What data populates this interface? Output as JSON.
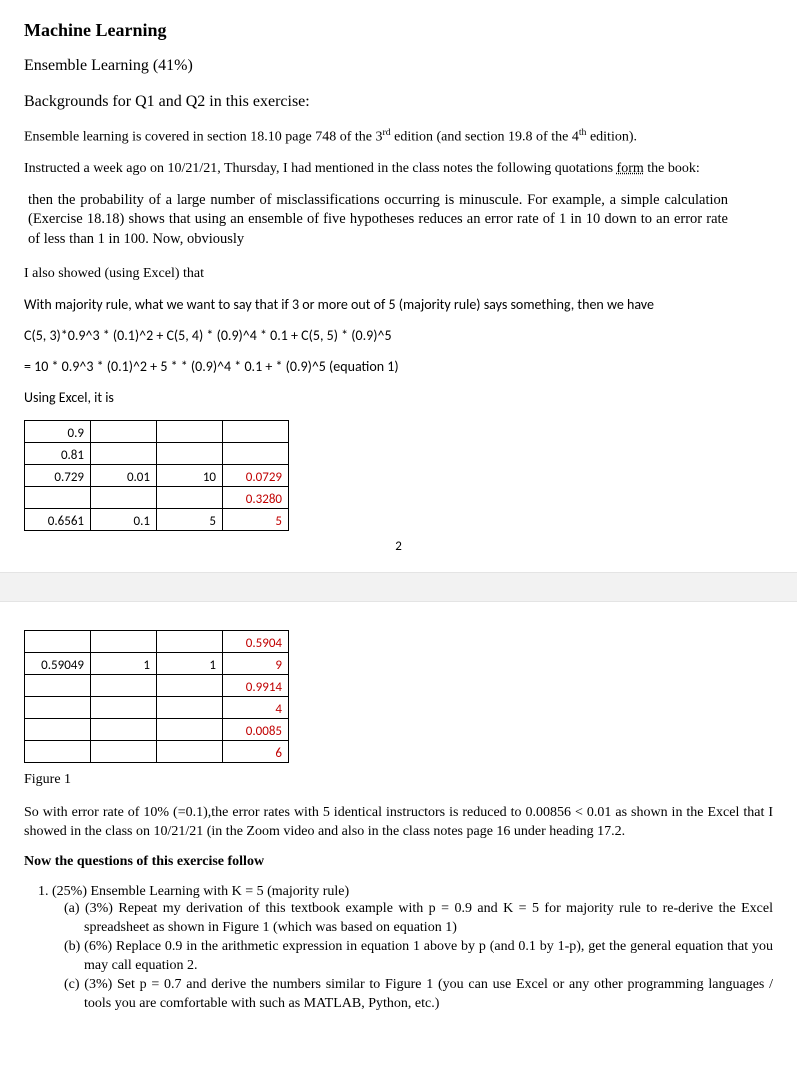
{
  "title": "Machine Learning",
  "subhead1": "Ensemble Learning (41%)",
  "subhead2": "Backgrounds for Q1 and Q2 in this exercise:",
  "intro1_a": "Ensemble learning is covered in section 18.10 page 748 of the 3",
  "intro1_sup1": "rd",
  "intro1_b": " edition (and section 19.8 of the 4",
  "intro1_sup2": "th",
  "intro1_c": " edition).",
  "intro2_a": "Instructed a week ago on 10/21/21, Thursday, I had mentioned in the class notes the following quotations ",
  "intro2_u": "form",
  "intro2_b": " the book:",
  "quote": "then the probability of a large number of misclassifications occurring is minuscule. For example, a simple calculation (Exercise 18.18) shows that using an ensemble of five hypotheses reduces an error rate of 1 in 10 down to an error rate of less than 1 in 100. Now, obviously",
  "also": "I also showed (using Excel) that",
  "maj": "With majority rule, what we want to say that if 3 or more out of 5 (majority rule) says something, then we have",
  "eq_line1": "C(5, 3)*0.9^3 * (0.1)^2 + C(5, 4) * (0.9)^4 * 0.1 + C(5, 5) * (0.9)^5",
  "eq_line2": "= 10 * 0.9^3 * (0.1)^2 + 5 * * (0.9)^4 * 0.1 + * (0.9)^5   (equation 1)",
  "using_excel": "Using Excel, it is",
  "table1": {
    "rows": [
      [
        {
          "v": "0.9"
        },
        {
          "v": ""
        },
        {
          "v": ""
        },
        {
          "v": ""
        }
      ],
      [
        {
          "v": "0.81"
        },
        {
          "v": ""
        },
        {
          "v": ""
        },
        {
          "v": ""
        }
      ],
      [
        {
          "v": "0.729"
        },
        {
          "v": "0.01"
        },
        {
          "v": "10"
        },
        {
          "v": "0.0729",
          "red": true
        }
      ],
      [
        {
          "v": ""
        },
        {
          "v": ""
        },
        {
          "v": ""
        },
        {
          "v": "0.3280",
          "red": true
        }
      ],
      [
        {
          "v": "0.6561"
        },
        {
          "v": "0.1"
        },
        {
          "v": "5"
        },
        {
          "v": "5",
          "red": true
        }
      ]
    ]
  },
  "page_num": "2",
  "table2": {
    "rows": [
      [
        {
          "v": ""
        },
        {
          "v": ""
        },
        {
          "v": ""
        },
        {
          "v": "0.5904",
          "red": true
        }
      ],
      [
        {
          "v": "0.59049"
        },
        {
          "v": "1"
        },
        {
          "v": "1"
        },
        {
          "v": "9",
          "red": true
        }
      ],
      [
        {
          "v": ""
        },
        {
          "v": ""
        },
        {
          "v": ""
        },
        {
          "v": "0.9914",
          "red": true
        }
      ],
      [
        {
          "v": ""
        },
        {
          "v": ""
        },
        {
          "v": ""
        },
        {
          "v": "4",
          "red": true
        }
      ],
      [
        {
          "v": ""
        },
        {
          "v": ""
        },
        {
          "v": ""
        },
        {
          "v": "0.0085",
          "red": true
        }
      ],
      [
        {
          "v": ""
        },
        {
          "v": ""
        },
        {
          "v": ""
        },
        {
          "v": "6",
          "red": true
        }
      ]
    ]
  },
  "fig1": "Figure 1",
  "summary": "So with error rate of 10% (=0.1),the error rates with 5 identical instructors is reduced to 0.00856 < 0.01 as shown in the Excel that I showed in the class on 10/21/21 (in the Zoom video and also in the class notes page 16 under heading 17.2.",
  "now": "Now the questions of this exercise follow",
  "q1": "(25%) Ensemble Learning with K = 5 (majority rule)",
  "q1a": "(a) (3%) Repeat my derivation of this textbook example with p = 0.9 and K = 5 for majority rule to re-derive the Excel spreadsheet as shown in Figure 1 (which was based on equation 1)",
  "q1b": "(b) (6%) Replace 0.9 in the arithmetic expression in equation 1 above by p (and 0.1 by 1-p), get the general equation that you may call equation 2.",
  "q1c": "(c) (3%) Set p = 0.7 and derive the numbers similar to Figure 1 (you can use Excel or any other programming languages / tools you are comfortable with such as MATLAB, Python, etc.)"
}
